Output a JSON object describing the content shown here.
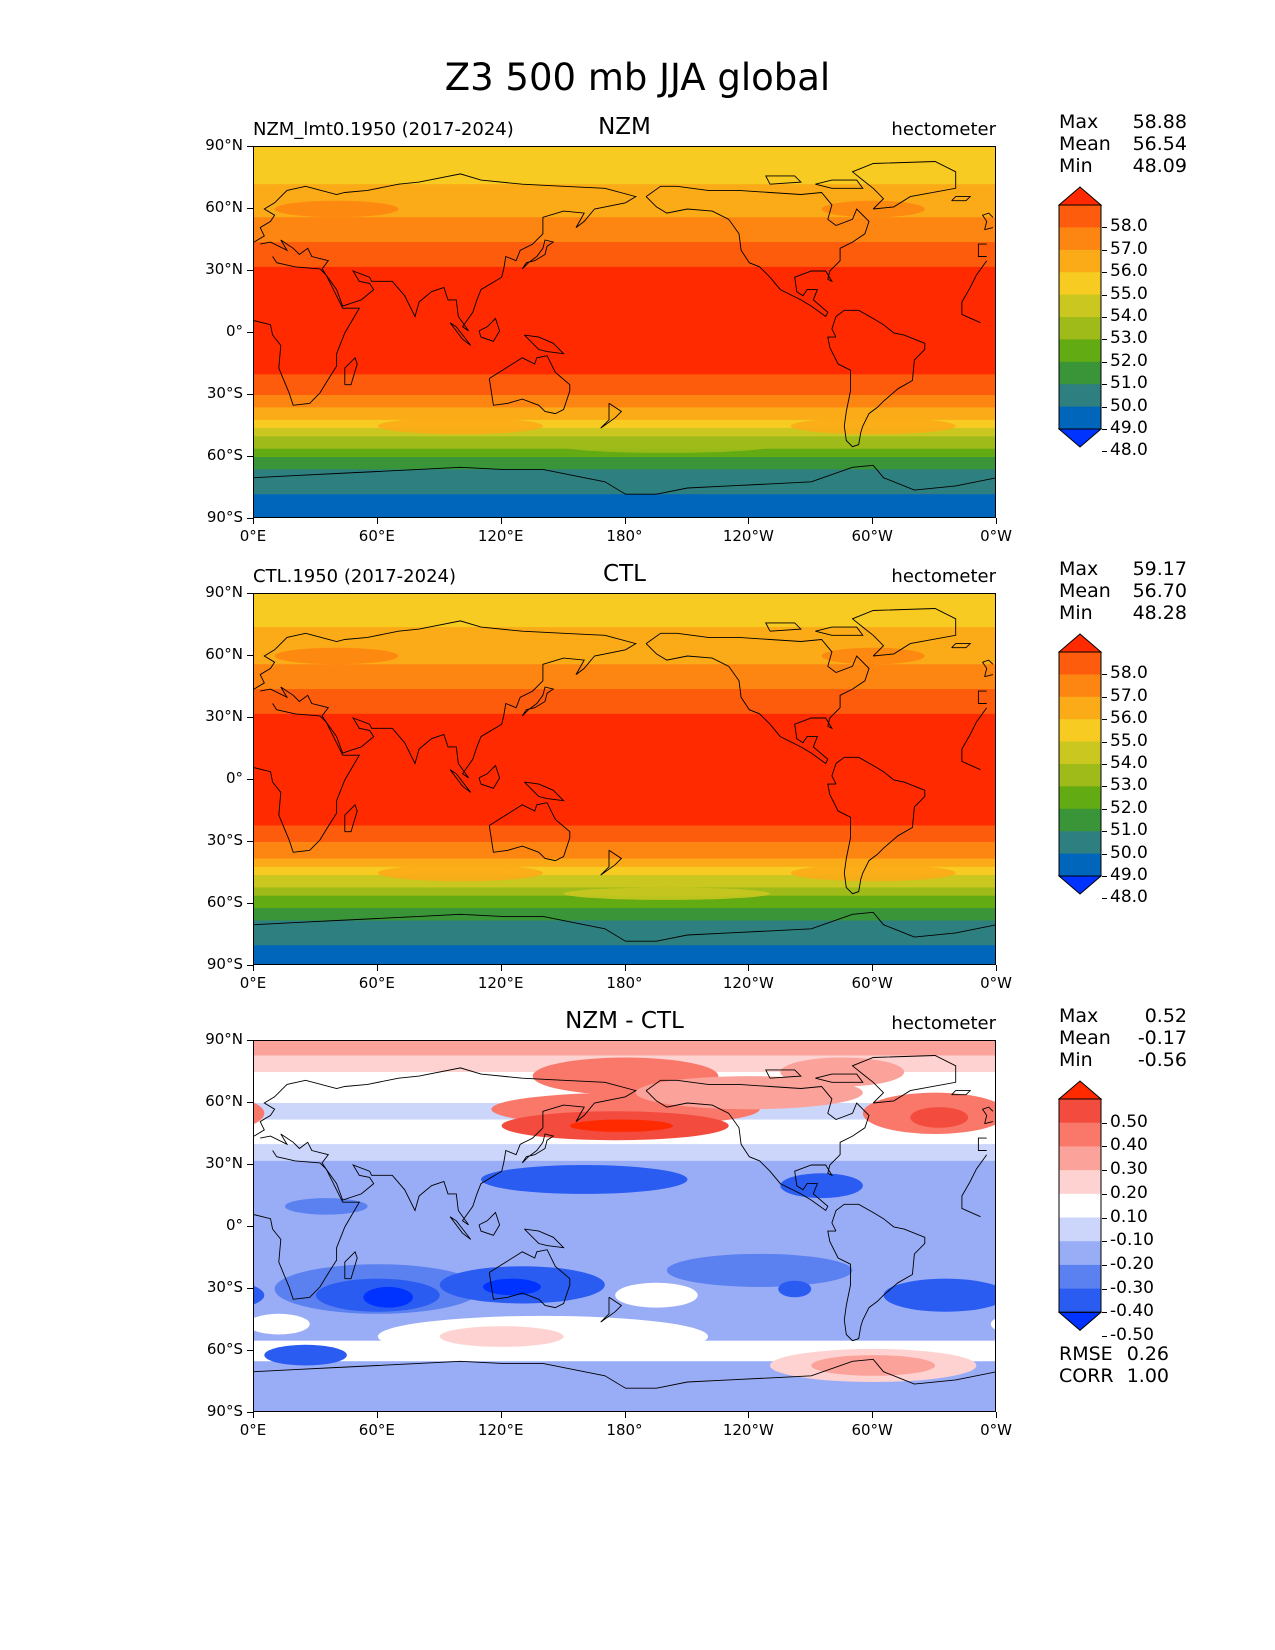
{
  "title": "Z3 500 mb JJA global",
  "colors": {
    "abs_levels": [
      "#0033ff",
      "#0066bb",
      "#2e8080",
      "#3a9438",
      "#62ab12",
      "#9ebb1a",
      "#c9c720",
      "#f7cb22",
      "#fbab17",
      "#fd8511",
      "#fd5c0c",
      "#ff2a00"
    ],
    "diff_levels": [
      "#0033ff",
      "#2a5cf2",
      "#5b80f0",
      "#99adf7",
      "#ccd6fb",
      "#ffffff",
      "#fdd2d0",
      "#fba29a",
      "#f9786a",
      "#f34c3e",
      "#ff2a00"
    ],
    "land": "#000000"
  },
  "panels": [
    {
      "name": "NZM",
      "left_label": "NZM_lmt0.1950 (2017-2024)",
      "units": "hectometer",
      "stats": {
        "max_label": "Max",
        "max": "58.88",
        "mean_label": "Mean",
        "mean": "56.54",
        "min_label": "Min",
        "min": "48.09"
      },
      "colorbar_labels": [
        "58.0",
        "57.0",
        "56.0",
        "55.0",
        "54.0",
        "53.0",
        "52.0",
        "51.0",
        "50.0",
        "49.0",
        "48.0"
      ]
    },
    {
      "name": "CTL",
      "left_label": "CTL.1950 (2017-2024)",
      "units": "hectometer",
      "stats": {
        "max_label": "Max",
        "max": "59.17",
        "mean_label": "Mean",
        "mean": "56.70",
        "min_label": "Min",
        "min": "48.28"
      },
      "colorbar_labels": [
        "58.0",
        "57.0",
        "56.0",
        "55.0",
        "54.0",
        "53.0",
        "52.0",
        "51.0",
        "50.0",
        "49.0",
        "48.0"
      ]
    },
    {
      "name": "NZM - CTL",
      "left_label": "",
      "units": "hectometer",
      "stats": {
        "max_label": "Max",
        "max": "0.52",
        "mean_label": "Mean",
        "mean": "-0.17",
        "min_label": "Min",
        "min": "-0.56"
      },
      "colorbar_labels": [
        "0.50",
        "0.40",
        "0.30",
        "0.20",
        "0.10",
        "-0.10",
        "-0.20",
        "-0.30",
        "-0.40",
        "-0.50"
      ],
      "extra_stats": {
        "rmse_label": "RMSE",
        "rmse": "0.26",
        "corr_label": "CORR",
        "corr": "1.00"
      }
    }
  ],
  "axes": {
    "y_ticks": [
      "90°N",
      "60°N",
      "30°N",
      "0°",
      "30°S",
      "60°S",
      "90°S"
    ],
    "x_ticks": [
      "0°E",
      "60°E",
      "120°E",
      "180°",
      "120°W",
      "60°W",
      "0°W"
    ]
  },
  "chart_data": [
    {
      "type": "heatmap",
      "title": "NZM",
      "subtitle": "NZM_lmt0.1950 (2017-2024)",
      "units": "hectometer",
      "variable": "Z3 500 mb JJA global",
      "lat_profile": {
        "lat": [
          90,
          75,
          60,
          50,
          40,
          30,
          20,
          0,
          -20,
          -25,
          -30,
          -35,
          -40,
          -45,
          -50,
          -55,
          -60,
          -65,
          -70,
          -80,
          -90
        ],
        "z3": [
          54.6,
          54.8,
          55.6,
          56.4,
          57.3,
          58.1,
          58.3,
          58.4,
          58.1,
          57.5,
          56.9,
          56.2,
          55.3,
          54.2,
          53.1,
          52.0,
          51.0,
          50.0,
          49.3,
          48.9,
          48.8
        ]
      },
      "levels": [
        48.0,
        49.0,
        50.0,
        51.0,
        52.0,
        53.0,
        54.0,
        55.0,
        56.0,
        57.0,
        58.0
      ],
      "stats": {
        "max": 58.88,
        "mean": 56.54,
        "min": 48.09
      },
      "xlim": [
        0,
        360
      ],
      "ylim": [
        -90,
        90
      ]
    },
    {
      "type": "heatmap",
      "title": "CTL",
      "subtitle": "CTL.1950 (2017-2024)",
      "units": "hectometer",
      "lat_profile": {
        "lat": [
          90,
          75,
          60,
          50,
          40,
          30,
          20,
          0,
          -20,
          -25,
          -30,
          -35,
          -40,
          -45,
          -50,
          -55,
          -60,
          -65,
          -70,
          -80,
          -90
        ],
        "z3": [
          54.7,
          54.9,
          55.7,
          56.5,
          57.4,
          58.2,
          58.4,
          58.5,
          58.3,
          57.7,
          57.1,
          56.4,
          55.5,
          54.4,
          53.3,
          52.3,
          51.3,
          50.3,
          49.6,
          49.0,
          48.9
        ]
      },
      "levels": [
        48.0,
        49.0,
        50.0,
        51.0,
        52.0,
        53.0,
        54.0,
        55.0,
        56.0,
        57.0,
        58.0
      ],
      "stats": {
        "max": 59.17,
        "mean": 56.7,
        "min": 48.28
      },
      "xlim": [
        0,
        360
      ],
      "ylim": [
        -90,
        90
      ]
    },
    {
      "type": "heatmap",
      "title": "NZM - CTL",
      "units": "hectometer",
      "background_value": -0.25,
      "lat_bands": [
        {
          "lat": [
            90,
            83
          ],
          "value": 0.22
        },
        {
          "lat": [
            83,
            75
          ],
          "value": 0.12
        },
        {
          "lat": [
            75,
            60
          ],
          "value": 0.05
        },
        {
          "lat": [
            60,
            52
          ],
          "value": -0.13
        },
        {
          "lat": [
            52,
            40
          ],
          "value": 0.02
        },
        {
          "lat": [
            40,
            32
          ],
          "value": -0.12
        },
        {
          "lat": [
            -55,
            -65
          ],
          "value": -0.05
        },
        {
          "lat": [
            -65,
            -72
          ],
          "value": -0.22
        },
        {
          "lat": [
            -72,
            -90
          ],
          "value": -0.25
        }
      ],
      "anomalies": [
        {
          "lon": 180,
          "lat": 73,
          "rlon": 45,
          "rlat": 9,
          "value": 0.3
        },
        {
          "lon": 285,
          "lat": 75,
          "rlon": 30,
          "rlat": 7,
          "value": 0.22
        },
        {
          "lon": 180,
          "lat": 57,
          "rlon": 65,
          "rlat": 8,
          "value": 0.3
        },
        {
          "lon": 175,
          "lat": 49,
          "rlon": 55,
          "rlat": 7,
          "value": 0.42
        },
        {
          "lon": 178,
          "lat": 49,
          "rlon": 25,
          "rlat": 3,
          "value": 0.52
        },
        {
          "lon": 330,
          "lat": 55,
          "rlon": 35,
          "rlat": 10,
          "value": 0.3
        },
        {
          "lon": 332,
          "lat": 53,
          "rlon": 14,
          "rlat": 5,
          "value": 0.42
        },
        {
          "lon": 240,
          "lat": 65,
          "rlon": 55,
          "rlat": 8,
          "value": 0.25
        },
        {
          "lon": 160,
          "lat": 23,
          "rlon": 50,
          "rlat": 7,
          "value": -0.42
        },
        {
          "lon": 275,
          "lat": 20,
          "rlon": 20,
          "rlat": 6,
          "value": -0.42
        },
        {
          "lon": 35,
          "lat": 10,
          "rlon": 20,
          "rlat": 4,
          "value": -0.32
        },
        {
          "lon": 60,
          "lat": -30,
          "rlon": 50,
          "rlat": 12,
          "value": -0.35
        },
        {
          "lon": 60,
          "lat": -33,
          "rlon": 30,
          "rlat": 8,
          "value": -0.45
        },
        {
          "lon": 65,
          "lat": -34,
          "rlon": 12,
          "rlat": 5,
          "value": -0.56
        },
        {
          "lon": 130,
          "lat": -28,
          "rlon": 40,
          "rlat": 9,
          "value": -0.42
        },
        {
          "lon": 125,
          "lat": -29,
          "rlon": 14,
          "rlat": 4,
          "value": -0.52
        },
        {
          "lon": 195,
          "lat": -33,
          "rlon": 20,
          "rlat": 6,
          "value": 0.02
        },
        {
          "lon": 245,
          "lat": -21,
          "rlon": 45,
          "rlat": 8,
          "value": -0.35
        },
        {
          "lon": 262,
          "lat": -30,
          "rlon": 8,
          "rlat": 4,
          "value": -0.45
        },
        {
          "lon": 335,
          "lat": -33,
          "rlon": 30,
          "rlat": 8,
          "value": -0.45
        },
        {
          "lon": 12,
          "lat": -47,
          "rlon": 15,
          "rlat": 5,
          "value": 0.02
        },
        {
          "lon": 140,
          "lat": -53,
          "rlon": 80,
          "rlat": 10,
          "value": 0.02
        },
        {
          "lon": 120,
          "lat": -53,
          "rlon": 30,
          "rlat": 5,
          "value": 0.15
        },
        {
          "lon": 300,
          "lat": -67,
          "rlon": 50,
          "rlat": 8,
          "value": 0.12
        },
        {
          "lon": 300,
          "lat": -67,
          "rlon": 30,
          "rlat": 5,
          "value": 0.22
        },
        {
          "lon": 25,
          "lat": -62,
          "rlon": 20,
          "rlat": 5,
          "value": -0.42
        }
      ],
      "levels": [
        -0.5,
        -0.4,
        -0.3,
        -0.2,
        -0.1,
        0.1,
        0.2,
        0.3,
        0.4,
        0.5
      ],
      "stats": {
        "max": 0.52,
        "mean": -0.17,
        "min": -0.56,
        "rmse": 0.26,
        "corr": 1.0
      },
      "xlim": [
        0,
        360
      ],
      "ylim": [
        -90,
        90
      ]
    }
  ]
}
